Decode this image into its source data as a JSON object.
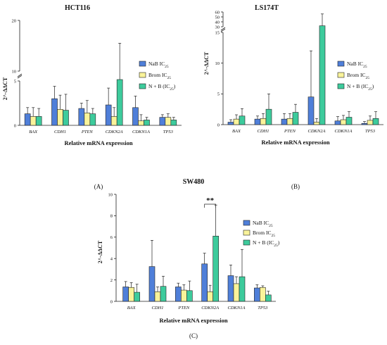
{
  "colors": {
    "nab": "#4F7FD9",
    "brom": "#F9F39A",
    "nb": "#3DCB9C",
    "stroke": "#222222"
  },
  "legend": {
    "nab_main": "NaB IC",
    "nab_sub": "25",
    "brom_main": "Brom IC",
    "brom_sub": "25",
    "nb_main": "N + B (IC",
    "nb_sub": "25",
    "nb_close": ")"
  },
  "chart_data": [
    {
      "type": "bar",
      "id": "hct116",
      "title": "HCT116",
      "panel_label": "(A)",
      "xlabel": "Relative mRNA expression",
      "ylabel": "2^-ΔΔCT",
      "categories": [
        "BAX",
        "CDH1",
        "PTEN",
        "CDKN2A",
        "CDKN1A",
        "TP53"
      ],
      "y_axis": "broken",
      "segments": [
        [
          0,
          5
        ],
        [
          10,
          20
        ]
      ],
      "y_ticks_lower": [
        0,
        5
      ],
      "y_ticks_upper": [
        10,
        20
      ],
      "series": [
        {
          "key": "nab",
          "values": [
            1.3,
            3.0,
            1.9,
            2.3,
            2.0,
            0.9
          ],
          "err": [
            0.7,
            1.4,
            0.6,
            1.9,
            1.3,
            0.3
          ]
        },
        {
          "key": "brom",
          "values": [
            1.0,
            1.8,
            1.4,
            1.0,
            0.5,
            0.9
          ],
          "err": [
            1.0,
            1.6,
            1.4,
            1.0,
            0.7,
            0.4
          ]
        },
        {
          "key": "nb",
          "values": [
            1.0,
            1.7,
            1.3,
            6.8,
            0.6,
            0.6
          ],
          "err": [
            0.9,
            1.8,
            0.6,
            8.7,
            0.3,
            0.3
          ]
        }
      ]
    },
    {
      "type": "bar",
      "id": "ls174t",
      "title": "LS174T",
      "panel_label": "(B)",
      "xlabel": "Relative mRNA expression",
      "ylabel": "2^-ΔΔCT",
      "categories": [
        "BAX",
        "CDH1",
        "PTEN",
        "CDKN2A",
        "CDKN1A",
        "TP53"
      ],
      "y_axis": "broken",
      "segments": [
        [
          0,
          15
        ],
        [
          30,
          60
        ]
      ],
      "y_ticks_lower": [
        0,
        5,
        10,
        15
      ],
      "y_ticks_upper": [
        30,
        40,
        50,
        60
      ],
      "series": [
        {
          "key": "nab",
          "values": [
            0.4,
            0.9,
            0.9,
            4.5,
            0.6,
            0.2
          ],
          "err": [
            0.4,
            0.5,
            0.9,
            7.5,
            0.7,
            0.3
          ]
        },
        {
          "key": "brom",
          "values": [
            0.9,
            1.0,
            1.0,
            0.4,
            0.8,
            0.7
          ],
          "err": [
            0.7,
            0.8,
            0.8,
            0.6,
            0.7,
            0.7
          ]
        },
        {
          "key": "nb",
          "values": [
            1.4,
            2.5,
            2.0,
            32.0,
            1.2,
            1.0
          ],
          "err": [
            1.2,
            2.5,
            1.3,
            24.0,
            0.9,
            1.1
          ]
        }
      ]
    },
    {
      "type": "bar",
      "id": "sw480",
      "title": "SW480",
      "panel_label": "(C)",
      "xlabel": "Relative mRNA expression",
      "ylabel": "2^-ΔΔCT",
      "categories": [
        "BAX",
        "CDH1",
        "PTEN",
        "CDKN2A",
        "CDKN1A",
        "TP53"
      ],
      "y_axis": "linear",
      "ylim": [
        0,
        10
      ],
      "y_ticks": [
        0,
        2,
        4,
        6,
        8,
        10
      ],
      "annotation": {
        "text": "**",
        "category": "CDKN2A"
      },
      "series": [
        {
          "key": "nab",
          "values": [
            1.35,
            3.25,
            1.35,
            3.5,
            2.4,
            1.25
          ],
          "err": [
            0.5,
            2.45,
            0.35,
            1.0,
            1.0,
            0.3
          ]
        },
        {
          "key": "brom",
          "values": [
            1.3,
            0.9,
            1.05,
            0.9,
            1.65,
            1.3
          ],
          "err": [
            0.45,
            0.45,
            0.5,
            0.6,
            0.65,
            0.15
          ]
        },
        {
          "key": "nb",
          "values": [
            0.85,
            1.4,
            1.0,
            6.1,
            2.3,
            0.6
          ],
          "err": [
            0.75,
            0.95,
            0.9,
            2.9,
            2.55,
            0.35
          ]
        }
      ]
    }
  ]
}
